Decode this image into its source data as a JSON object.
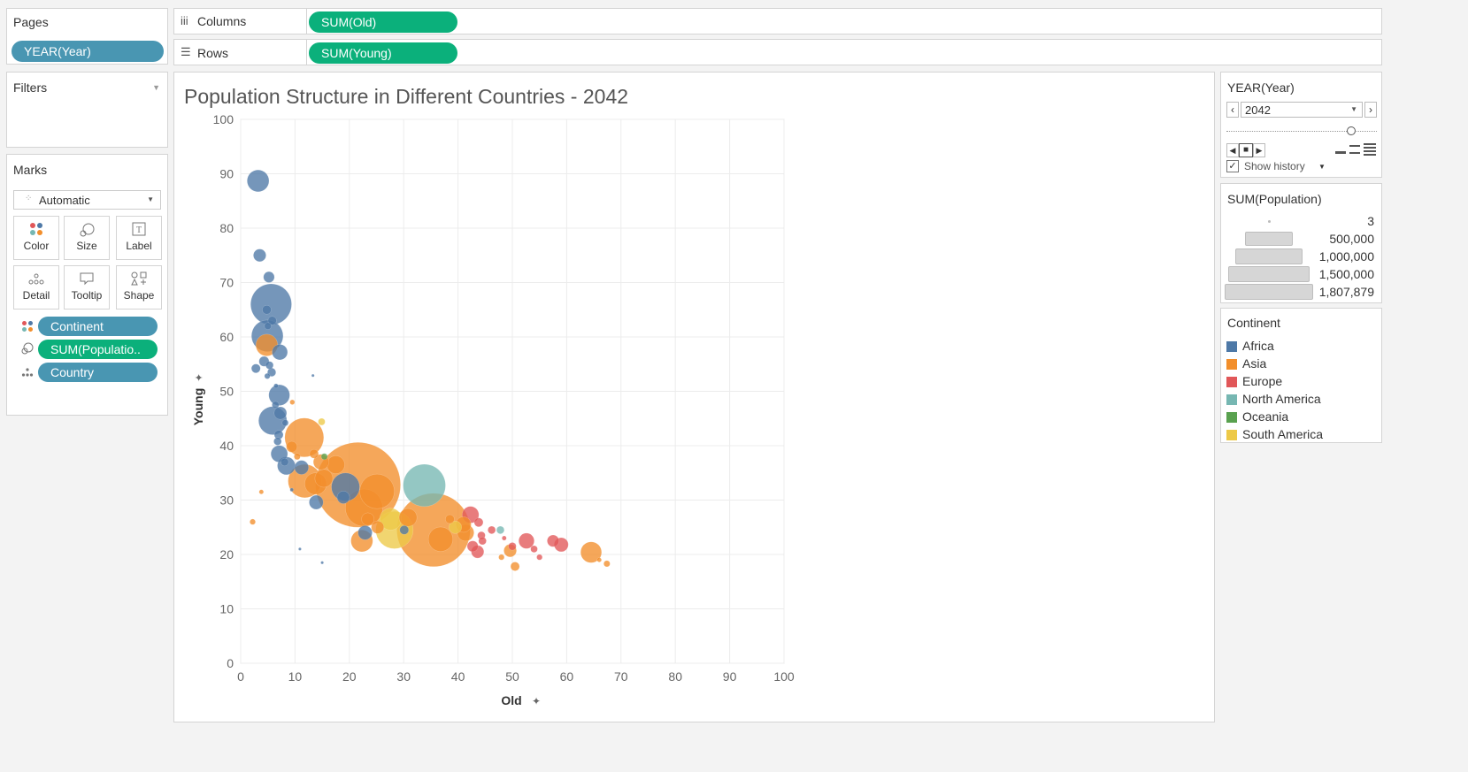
{
  "pages": {
    "title": "Pages",
    "pill": "YEAR(Year)"
  },
  "columns": {
    "icon": "iii",
    "label": "Columns",
    "pill": "SUM(Old)"
  },
  "rows": {
    "icon": "☰",
    "label": "Rows",
    "pill": "SUM(Young)"
  },
  "filters": {
    "title": "Filters"
  },
  "marks": {
    "title": "Marks",
    "type": "Automatic",
    "buttons": [
      {
        "label": "Color",
        "icon": "color-icon"
      },
      {
        "label": "Size",
        "icon": "size-icon"
      },
      {
        "label": "Label",
        "icon": "label-icon"
      },
      {
        "label": "Detail",
        "icon": "detail-icon"
      },
      {
        "label": "Tooltip",
        "icon": "tooltip-icon"
      },
      {
        "label": "Shape",
        "icon": "shape-icon"
      }
    ],
    "fields": [
      "Continent",
      "SUM(Populatio..",
      "Country"
    ]
  },
  "page_control": {
    "title": "YEAR(Year)",
    "value": "2042",
    "show_history": "Show history"
  },
  "size_legend": {
    "title": "SUM(Population)",
    "items": [
      "3",
      "500,000",
      "1,000,000",
      "1,500,000",
      "1,807,879"
    ]
  },
  "color_legend": {
    "title": "Continent",
    "items": [
      {
        "name": "Africa",
        "color": "#4e79a7"
      },
      {
        "name": "Asia",
        "color": "#f28e2b"
      },
      {
        "name": "Europe",
        "color": "#e15759"
      },
      {
        "name": "North America",
        "color": "#76b7b2"
      },
      {
        "name": "Oceania",
        "color": "#59a14f"
      },
      {
        "name": "South America",
        "color": "#edc948"
      }
    ]
  },
  "chart_data": {
    "type": "scatter",
    "title": "Population Structure in Different Countries - 2042",
    "xlabel": "Old",
    "ylabel": "Young",
    "xlim": [
      0,
      100
    ],
    "ylim": [
      0,
      100
    ],
    "xticks": [
      "0",
      "10",
      "20",
      "30",
      "40",
      "50",
      "60",
      "70",
      "80",
      "90",
      "100"
    ],
    "yticks": [
      "0",
      "10",
      "20",
      "30",
      "40",
      "50",
      "60",
      "70",
      "80",
      "90",
      "100"
    ],
    "grid": true,
    "size_field": "SUM(Population)",
    "color_field": "Continent",
    "points": [
      {
        "x": 3.2,
        "y": 88.7,
        "pop": 120000,
        "c": "Africa"
      },
      {
        "x": 3.5,
        "y": 75.0,
        "pop": 40000,
        "c": "Africa"
      },
      {
        "x": 5.2,
        "y": 71.0,
        "pop": 30000,
        "c": "Africa"
      },
      {
        "x": 5.6,
        "y": 66.0,
        "pop": 420000,
        "c": "Africa"
      },
      {
        "x": 4.8,
        "y": 65.0,
        "pop": 20000,
        "c": "Africa"
      },
      {
        "x": 5.0,
        "y": 62.0,
        "pop": 12000,
        "c": "Africa"
      },
      {
        "x": 5.8,
        "y": 63.0,
        "pop": 18000,
        "c": "Africa"
      },
      {
        "x": 4.9,
        "y": 60.2,
        "pop": 250000,
        "c": "Africa"
      },
      {
        "x": 4.8,
        "y": 58.5,
        "pop": 120000,
        "c": "Asia"
      },
      {
        "x": 7.2,
        "y": 57.2,
        "pop": 60000,
        "c": "Africa"
      },
      {
        "x": 4.3,
        "y": 55.5,
        "pop": 25000,
        "c": "Africa"
      },
      {
        "x": 2.8,
        "y": 54.2,
        "pop": 20000,
        "c": "Africa"
      },
      {
        "x": 5.3,
        "y": 54.8,
        "pop": 15000,
        "c": "Africa"
      },
      {
        "x": 5.7,
        "y": 53.5,
        "pop": 18000,
        "c": "Africa"
      },
      {
        "x": 4.9,
        "y": 52.8,
        "pop": 8000,
        "c": "Africa"
      },
      {
        "x": 6.5,
        "y": 51.0,
        "pop": 5000,
        "c": "Africa"
      },
      {
        "x": 7.1,
        "y": 49.3,
        "pop": 110000,
        "c": "Africa"
      },
      {
        "x": 6.4,
        "y": 47.5,
        "pop": 12000,
        "c": "Africa"
      },
      {
        "x": 7.3,
        "y": 46.0,
        "pop": 40000,
        "c": "Africa"
      },
      {
        "x": 5.9,
        "y": 44.6,
        "pop": 200000,
        "c": "Africa"
      },
      {
        "x": 8.2,
        "y": 44.2,
        "pop": 10000,
        "c": "Africa"
      },
      {
        "x": 7.0,
        "y": 42.0,
        "pop": 20000,
        "c": "Africa"
      },
      {
        "x": 6.8,
        "y": 40.8,
        "pop": 15000,
        "c": "Africa"
      },
      {
        "x": 9.5,
        "y": 48.0,
        "pop": 6000,
        "c": "Asia"
      },
      {
        "x": 13.3,
        "y": 52.9,
        "pop": 2000,
        "c": "Africa"
      },
      {
        "x": 14.9,
        "y": 44.4,
        "pop": 12000,
        "c": "South America"
      },
      {
        "x": 7.1,
        "y": 38.5,
        "pop": 70000,
        "c": "Africa"
      },
      {
        "x": 8.1,
        "y": 37.0,
        "pop": 15000,
        "c": "Africa"
      },
      {
        "x": 9.4,
        "y": 39.8,
        "pop": 30000,
        "c": "Asia"
      },
      {
        "x": 8.4,
        "y": 36.3,
        "pop": 80000,
        "c": "Africa"
      },
      {
        "x": 11.2,
        "y": 36.0,
        "pop": 50000,
        "c": "Africa"
      },
      {
        "x": 11.7,
        "y": 41.5,
        "pop": 380000,
        "c": "Asia"
      },
      {
        "x": 10.4,
        "y": 38.0,
        "pop": 10000,
        "c": "Asia"
      },
      {
        "x": 13.5,
        "y": 38.5,
        "pop": 20000,
        "c": "Asia"
      },
      {
        "x": 14.8,
        "y": 37.0,
        "pop": 60000,
        "c": "Asia"
      },
      {
        "x": 17.5,
        "y": 36.5,
        "pop": 80000,
        "c": "Asia"
      },
      {
        "x": 15.4,
        "y": 38.0,
        "pop": 10000,
        "c": "Oceania"
      },
      {
        "x": 11.8,
        "y": 33.5,
        "pop": 280000,
        "c": "Asia"
      },
      {
        "x": 13.8,
        "y": 33.0,
        "pop": 120000,
        "c": "Asia"
      },
      {
        "x": 15.3,
        "y": 34.0,
        "pop": 80000,
        "c": "Asia"
      },
      {
        "x": 21.6,
        "y": 32.8,
        "pop": 1807879,
        "c": "Asia"
      },
      {
        "x": 19.3,
        "y": 32.4,
        "pop": 200000,
        "c": "Africa"
      },
      {
        "x": 25.1,
        "y": 31.6,
        "pop": 300000,
        "c": "Asia"
      },
      {
        "x": 18.9,
        "y": 30.5,
        "pop": 40000,
        "c": "Africa"
      },
      {
        "x": 13.9,
        "y": 29.6,
        "pop": 50000,
        "c": "Africa"
      },
      {
        "x": 9.4,
        "y": 31.9,
        "pop": 3000,
        "c": "Africa"
      },
      {
        "x": 3.8,
        "y": 31.5,
        "pop": 5000,
        "c": "Asia"
      },
      {
        "x": 2.2,
        "y": 26.0,
        "pop": 8000,
        "c": "Asia"
      },
      {
        "x": 22.7,
        "y": 28.6,
        "pop": 350000,
        "c": "Asia"
      },
      {
        "x": 23.4,
        "y": 26.5,
        "pop": 40000,
        "c": "Asia"
      },
      {
        "x": 25.2,
        "y": 25.0,
        "pop": 40000,
        "c": "Asia"
      },
      {
        "x": 22.9,
        "y": 24.0,
        "pop": 50000,
        "c": "Africa"
      },
      {
        "x": 22.3,
        "y": 22.5,
        "pop": 120000,
        "c": "Asia"
      },
      {
        "x": 27.6,
        "y": 26.5,
        "pop": 120000,
        "c": "South America"
      },
      {
        "x": 28.3,
        "y": 24.5,
        "pop": 350000,
        "c": "South America"
      },
      {
        "x": 30.1,
        "y": 24.5,
        "pop": 20000,
        "c": "Africa"
      },
      {
        "x": 30.8,
        "y": 26.8,
        "pop": 80000,
        "c": "Asia"
      },
      {
        "x": 33.8,
        "y": 32.7,
        "pop": 450000,
        "c": "North America"
      },
      {
        "x": 35.5,
        "y": 24.5,
        "pop": 1350000,
        "c": "Asia"
      },
      {
        "x": 36.8,
        "y": 22.8,
        "pop": 150000,
        "c": "Asia"
      },
      {
        "x": 38.5,
        "y": 26.5,
        "pop": 20000,
        "c": "Asia"
      },
      {
        "x": 39.5,
        "y": 25.0,
        "pop": 40000,
        "c": "South America"
      },
      {
        "x": 41.0,
        "y": 25.5,
        "pop": 60000,
        "c": "Asia"
      },
      {
        "x": 41.4,
        "y": 24.0,
        "pop": 70000,
        "c": "Asia"
      },
      {
        "x": 42.3,
        "y": 27.3,
        "pop": 70000,
        "c": "Europe"
      },
      {
        "x": 43.8,
        "y": 25.9,
        "pop": 20000,
        "c": "Europe"
      },
      {
        "x": 44.3,
        "y": 23.5,
        "pop": 15000,
        "c": "Europe"
      },
      {
        "x": 42.7,
        "y": 21.5,
        "pop": 30000,
        "c": "Europe"
      },
      {
        "x": 43.6,
        "y": 20.5,
        "pop": 40000,
        "c": "Europe"
      },
      {
        "x": 44.5,
        "y": 22.5,
        "pop": 15000,
        "c": "Europe"
      },
      {
        "x": 46.2,
        "y": 24.5,
        "pop": 15000,
        "c": "Europe"
      },
      {
        "x": 47.8,
        "y": 24.5,
        "pop": 15000,
        "c": "North America"
      },
      {
        "x": 48.5,
        "y": 23.0,
        "pop": 5000,
        "c": "Europe"
      },
      {
        "x": 50.0,
        "y": 21.5,
        "pop": 15000,
        "c": "Europe"
      },
      {
        "x": 49.6,
        "y": 20.7,
        "pop": 40000,
        "c": "Asia"
      },
      {
        "x": 48.0,
        "y": 19.5,
        "pop": 8000,
        "c": "Asia"
      },
      {
        "x": 50.5,
        "y": 17.8,
        "pop": 20000,
        "c": "Asia"
      },
      {
        "x": 52.6,
        "y": 22.5,
        "pop": 60000,
        "c": "Europe"
      },
      {
        "x": 54.0,
        "y": 21.0,
        "pop": 12000,
        "c": "Europe"
      },
      {
        "x": 55.0,
        "y": 19.5,
        "pop": 8000,
        "c": "Europe"
      },
      {
        "x": 57.5,
        "y": 22.5,
        "pop": 35000,
        "c": "Europe"
      },
      {
        "x": 59.0,
        "y": 21.8,
        "pop": 50000,
        "c": "Europe"
      },
      {
        "x": 64.5,
        "y": 20.4,
        "pop": 110000,
        "c": "Asia"
      },
      {
        "x": 66.0,
        "y": 19.0,
        "pop": 5000,
        "c": "Asia"
      },
      {
        "x": 67.4,
        "y": 18.3,
        "pop": 10000,
        "c": "Asia"
      },
      {
        "x": 15.0,
        "y": 18.5,
        "pop": 2000,
        "c": "Africa"
      },
      {
        "x": 10.9,
        "y": 21.0,
        "pop": 2000,
        "c": "Africa"
      }
    ]
  }
}
